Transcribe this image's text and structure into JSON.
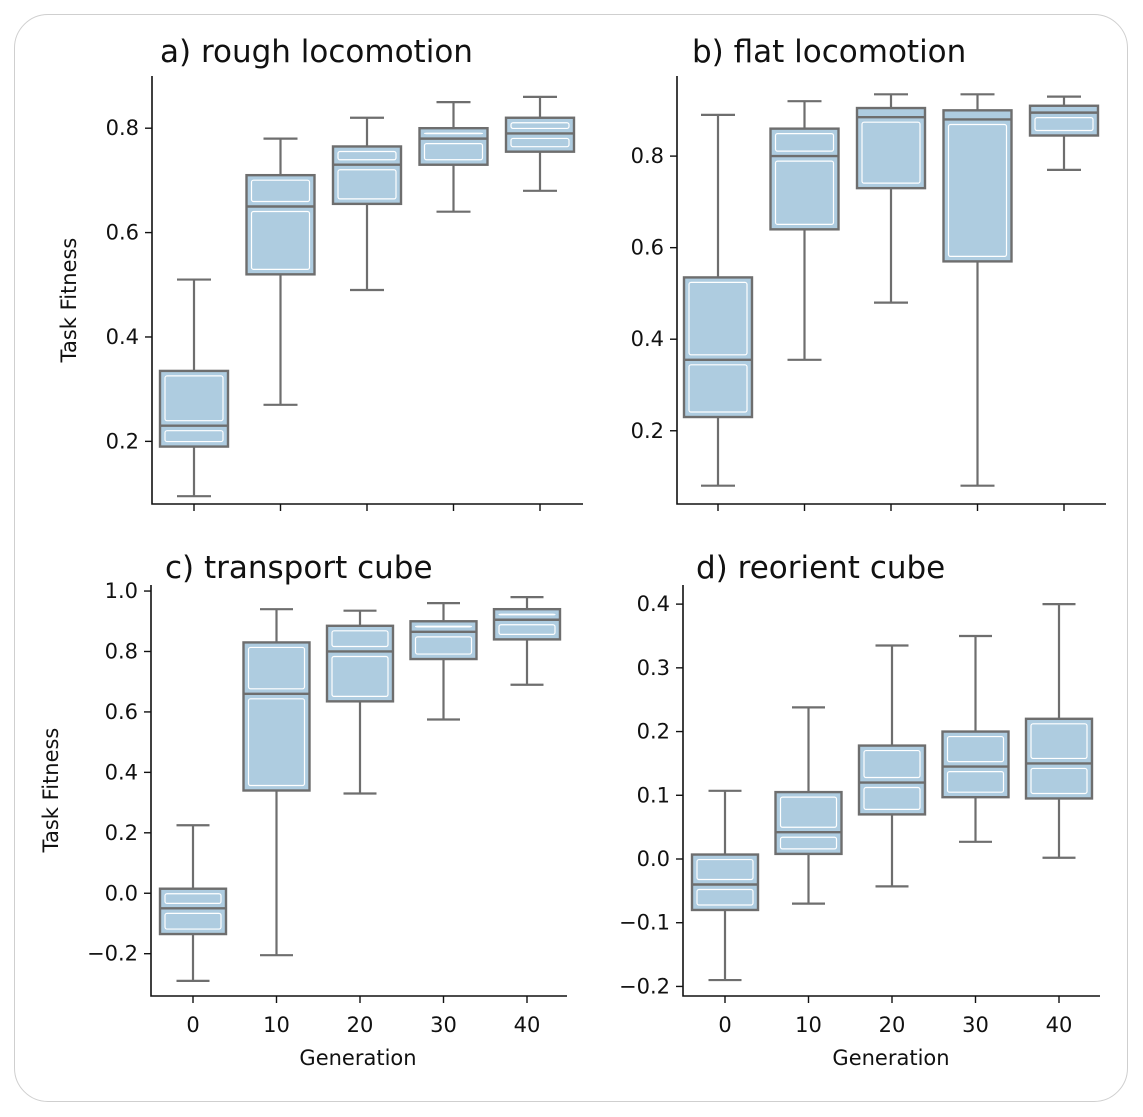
{
  "chart_data": [
    {
      "type": "box",
      "title": "a) rough locomotion",
      "xlabel": "",
      "ylabel": "Task Fitness",
      "categories": [
        "0",
        "10",
        "20",
        "30",
        "40"
      ],
      "yticks": [
        "0.2",
        "0.4",
        "0.6",
        "0.8"
      ],
      "ytick_values": [
        0.2,
        0.4,
        0.6,
        0.8
      ],
      "show_xticklabels": false,
      "ylim": [
        0.08,
        0.9
      ],
      "boxes": [
        {
          "min": 0.095,
          "q1": 0.19,
          "median": 0.23,
          "q3": 0.335,
          "max": 0.51
        },
        {
          "min": 0.27,
          "q1": 0.52,
          "median": 0.65,
          "q3": 0.71,
          "max": 0.78
        },
        {
          "min": 0.49,
          "q1": 0.655,
          "median": 0.73,
          "q3": 0.765,
          "max": 0.82
        },
        {
          "min": 0.64,
          "q1": 0.73,
          "median": 0.78,
          "q3": 0.8,
          "max": 0.85
        },
        {
          "min": 0.68,
          "q1": 0.755,
          "median": 0.79,
          "q3": 0.82,
          "max": 0.86
        }
      ]
    },
    {
      "type": "box",
      "title": "b) flat locomotion",
      "xlabel": "",
      "ylabel": "",
      "categories": [
        "0",
        "10",
        "20",
        "30",
        "40"
      ],
      "yticks": [
        "0.2",
        "0.4",
        "0.6",
        "0.8"
      ],
      "ytick_values": [
        0.2,
        0.4,
        0.6,
        0.8
      ],
      "show_xticklabels": false,
      "ylim": [
        0.04,
        0.975
      ],
      "boxes": [
        {
          "min": 0.08,
          "q1": 0.23,
          "median": 0.355,
          "q3": 0.535,
          "max": 0.89
        },
        {
          "min": 0.355,
          "q1": 0.64,
          "median": 0.8,
          "q3": 0.86,
          "max": 0.92
        },
        {
          "min": 0.48,
          "q1": 0.73,
          "median": 0.885,
          "q3": 0.905,
          "max": 0.935
        },
        {
          "min": 0.08,
          "q1": 0.57,
          "median": 0.88,
          "q3": 0.9,
          "max": 0.935
        },
        {
          "min": 0.77,
          "q1": 0.845,
          "median": 0.895,
          "q3": 0.91,
          "max": 0.93
        }
      ]
    },
    {
      "type": "box",
      "title": "c) transport cube",
      "xlabel": "Generation",
      "ylabel": "Task Fitness",
      "categories": [
        "0",
        "10",
        "20",
        "30",
        "40"
      ],
      "yticks": [
        "1.0",
        "0.8",
        "0.6",
        "0.4",
        "0.2",
        "0.0",
        "−0.2"
      ],
      "ytick_values": [
        1.0,
        0.8,
        0.6,
        0.4,
        0.2,
        0.0,
        -0.2
      ],
      "show_xticklabels": true,
      "ylim": [
        -0.34,
        1.02
      ],
      "boxes": [
        {
          "min": -0.29,
          "q1": -0.135,
          "median": -0.05,
          "q3": 0.015,
          "max": 0.225
        },
        {
          "min": -0.205,
          "q1": 0.34,
          "median": 0.66,
          "q3": 0.83,
          "max": 0.94
        },
        {
          "min": 0.33,
          "q1": 0.635,
          "median": 0.8,
          "q3": 0.885,
          "max": 0.935
        },
        {
          "min": 0.575,
          "q1": 0.775,
          "median": 0.865,
          "q3": 0.9,
          "max": 0.96
        },
        {
          "min": 0.69,
          "q1": 0.84,
          "median": 0.905,
          "q3": 0.94,
          "max": 0.98
        }
      ]
    },
    {
      "type": "box",
      "title": "d) reorient cube",
      "xlabel": "Generation",
      "ylabel": "",
      "categories": [
        "0",
        "10",
        "20",
        "30",
        "40"
      ],
      "yticks": [
        "0.4",
        "0.3",
        "0.2",
        "0.1",
        "0.0",
        "−0.1",
        "−0.2"
      ],
      "ytick_values": [
        0.4,
        0.3,
        0.2,
        0.1,
        0.0,
        -0.1,
        -0.2
      ],
      "show_xticklabels": true,
      "ylim": [
        -0.215,
        0.43
      ],
      "boxes": [
        {
          "min": -0.19,
          "q1": -0.08,
          "median": -0.04,
          "q3": 0.007,
          "max": 0.107
        },
        {
          "min": -0.07,
          "q1": 0.008,
          "median": 0.042,
          "q3": 0.105,
          "max": 0.238
        },
        {
          "min": -0.043,
          "q1": 0.07,
          "median": 0.12,
          "q3": 0.178,
          "max": 0.335
        },
        {
          "min": 0.027,
          "q1": 0.097,
          "median": 0.145,
          "q3": 0.2,
          "max": 0.35
        },
        {
          "min": 0.002,
          "q1": 0.095,
          "median": 0.15,
          "q3": 0.22,
          "max": 0.4
        }
      ]
    }
  ]
}
